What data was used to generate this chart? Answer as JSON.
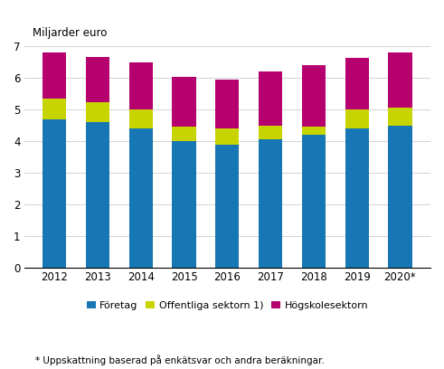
{
  "years": [
    "2012",
    "2013",
    "2014",
    "2015",
    "2016",
    "2017",
    "2018",
    "2019",
    "2020*"
  ],
  "foretag": [
    4.7,
    4.6,
    4.4,
    4.0,
    3.9,
    4.05,
    4.2,
    4.4,
    4.5
  ],
  "offentliga": [
    0.65,
    0.65,
    0.6,
    0.45,
    0.5,
    0.45,
    0.27,
    0.6,
    0.55
  ],
  "hogskolesektorn": [
    1.45,
    1.42,
    1.5,
    1.6,
    1.55,
    1.7,
    1.93,
    1.65,
    1.75
  ],
  "colors": {
    "foretag": "#1777b4",
    "offentliga": "#c8d400",
    "hogskolesektorn": "#b5006e"
  },
  "top_label": "Miljarder euro",
  "ylim": [
    0,
    7
  ],
  "yticks": [
    0,
    1,
    2,
    3,
    4,
    5,
    6,
    7
  ],
  "legend_labels": [
    "Företag",
    "Offentliga sektorn 1)",
    "Högskolesektorn"
  ],
  "footnote": "* Uppskattning baserad på enkätsvar och andra beräkningar.",
  "bar_width": 0.55
}
